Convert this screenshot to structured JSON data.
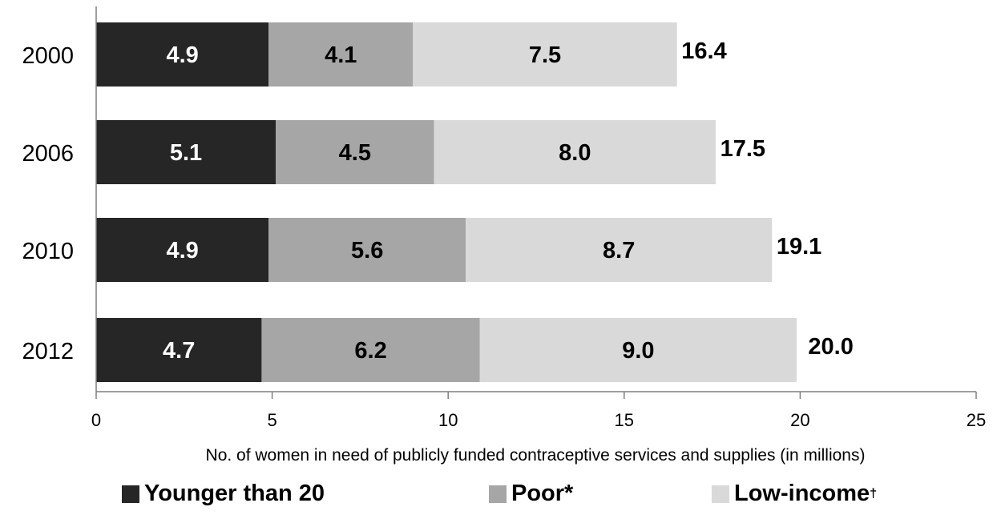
{
  "chart_data": {
    "type": "bar",
    "orientation": "horizontal",
    "stacked": true,
    "categories": [
      "2000",
      "2006",
      "2010",
      "2012"
    ],
    "series": [
      {
        "name": "Younger than 20",
        "values": [
          4.9,
          5.1,
          4.9,
          4.7
        ],
        "color": "#262626"
      },
      {
        "name": "Poor*",
        "values": [
          4.1,
          4.5,
          5.6,
          6.2
        ],
        "color": "#a6a6a6"
      },
      {
        "name": "Low-income",
        "values": [
          7.5,
          8.0,
          8.7,
          9.0
        ],
        "color": "#d9d9d9"
      }
    ],
    "data_labels": [
      [
        "4.9",
        "4.1",
        "7.5"
      ],
      [
        "5.1",
        "4.5",
        "8.0"
      ],
      [
        "4.9",
        "5.6",
        "8.7"
      ],
      [
        "4.7",
        "6.2",
        "9.0"
      ]
    ],
    "totals": [
      16.4,
      17.5,
      19.1,
      20.0
    ],
    "total_labels": [
      "16.4",
      "17.5",
      "19.1",
      "20.0"
    ],
    "xlabel": "No. of women in need of publicly funded contraceptive services and supplies (in millions)",
    "ylabel": "",
    "title": "",
    "xlim": [
      0,
      25
    ],
    "xticks": [
      0,
      5,
      10,
      15,
      20,
      25
    ],
    "xtick_labels": [
      "0",
      "5",
      "10",
      "15",
      "20",
      "25"
    ],
    "grid": false,
    "legend_position": "bottom",
    "legend_labels": [
      "Younger than 20",
      "Poor*",
      "Low-income"
    ],
    "legend_superscripts": [
      "",
      "",
      "†"
    ]
  }
}
